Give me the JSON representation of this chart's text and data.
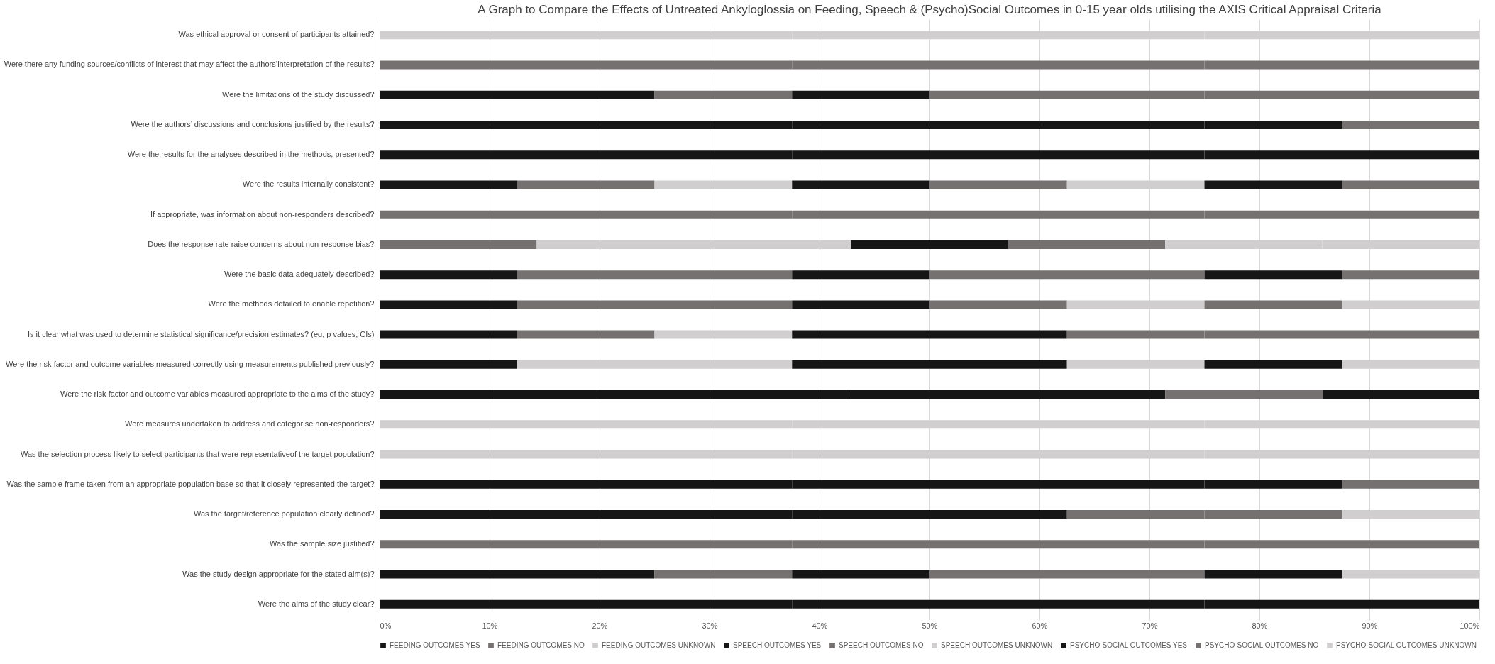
{
  "chart_data": {
    "type": "bar",
    "orientation": "horizontal",
    "stacked": true,
    "title": "A Graph to Compare the Effects of Untreated Ankyloglossia on Feeding, Speech & (Psycho)Social Outcomes in 0-15 year olds utilising the AXIS Critical Appraisal Criteria",
    "categories": [
      "Was ethical approval or consent of participants attained?",
      "Were there any funding sources/conflicts of interest that may affect the authors’interpretation of the results?",
      "Were the limitations of the study discussed?",
      "Were the authors’ discussions and conclusions justified by the results?",
      "Were the results for the analyses described in the methods, presented?",
      "Were the results internally consistent?",
      "If appropriate, was information about non-responders described?",
      "Does the response rate raise concerns about non-response bias?",
      "Were the basic data adequately described?",
      "Were the methods detailed to enable repetition?",
      "Is it clear what was used to determine statistical significance/precision estimates? (eg, p values, CIs)",
      "Were the risk factor and outcome variables measured correctly using measurements published previously?",
      "Were the risk factor and outcome variables measured appropriate to the aims of the study?",
      "Were measures undertaken to address and categorise non-responders?",
      "Was the selection process likely to select participants that were representativeof the target population?",
      "Was the sample frame taken from an appropriate population base so that it closely represented the target?",
      "Was the target/reference population clearly defined?",
      "Was the sample size justified?",
      "Was the study design appropriate for the stated aim(s)?",
      "Were the aims of the study clear?"
    ],
    "series": [
      {
        "name": "FEEDING OUTCOMES YES",
        "color": "#161616",
        "values": [
          null,
          null,
          25,
          37.5,
          37.5,
          12.5,
          null,
          null,
          12.5,
          12.5,
          12.5,
          12.5,
          42.86,
          null,
          null,
          37.5,
          37.5,
          null,
          25,
          37.5
        ]
      },
      {
        "name": "FEEDING OUTCOMES NO",
        "color": "#767171",
        "values": [
          null,
          37.5,
          12.5,
          null,
          null,
          12.5,
          37.5,
          14.29,
          25,
          25,
          12.5,
          null,
          null,
          null,
          null,
          null,
          null,
          37.5,
          12.5,
          null
        ]
      },
      {
        "name": "FEEDING OUTCOMES UNKNOWN",
        "color": "#d0cece",
        "values": [
          37.5,
          null,
          null,
          null,
          null,
          12.5,
          null,
          28.57,
          null,
          null,
          12.5,
          25,
          null,
          37.5,
          37.5,
          null,
          null,
          null,
          null,
          null
        ]
      },
      {
        "name": "SPEECH OUTCOMES YES",
        "color": "#161616",
        "values": [
          null,
          null,
          12.5,
          37.5,
          37.5,
          12.5,
          null,
          14.28,
          12.5,
          12.5,
          25,
          25,
          28.57,
          null,
          null,
          37.5,
          25,
          null,
          12.5,
          37.5
        ]
      },
      {
        "name": "SPEECH OUTCOMES NO",
        "color": "#767171",
        "values": [
          null,
          37.5,
          25,
          null,
          null,
          12.5,
          37.5,
          14.29,
          25,
          12.5,
          12.5,
          null,
          14.29,
          null,
          null,
          null,
          12.5,
          37.5,
          25,
          null
        ]
      },
      {
        "name": "SPEECH OUTCOMES UNKNOWN",
        "color": "#d0cece",
        "values": [
          37.5,
          null,
          null,
          null,
          null,
          12.5,
          null,
          14.28,
          null,
          12.5,
          null,
          12.5,
          null,
          37.5,
          37.5,
          null,
          null,
          null,
          null,
          null
        ]
      },
      {
        "name": "PSYCHO-SOCIAL OUTCOMES YES",
        "color": "#161616",
        "values": [
          null,
          null,
          null,
          12.5,
          25,
          12.5,
          null,
          null,
          12.5,
          null,
          null,
          12.5,
          14.28,
          null,
          null,
          12.5,
          null,
          null,
          12.5,
          25
        ]
      },
      {
        "name": "PSYCHO-SOCIAL OUTCOMES NO",
        "color": "#767171",
        "values": [
          null,
          25,
          25,
          12.5,
          null,
          12.5,
          25,
          null,
          12.5,
          12.5,
          25,
          null,
          null,
          null,
          null,
          12.5,
          12.5,
          25,
          null,
          null
        ]
      },
      {
        "name": "PSYCHO-SOCIAL OUTCOMES UNKNOWN",
        "color": "#d0cece",
        "values": [
          25,
          null,
          null,
          null,
          null,
          null,
          null,
          14.29,
          null,
          12.5,
          null,
          12.5,
          null,
          25,
          25,
          null,
          12.5,
          null,
          12.5,
          null
        ]
      }
    ],
    "xlim": [
      0,
      100
    ],
    "xticks": [
      {
        "value": 0,
        "label": "0%"
      },
      {
        "value": 10,
        "label": "10%"
      },
      {
        "value": 20,
        "label": "20%"
      },
      {
        "value": 30,
        "label": "30%"
      },
      {
        "value": 40,
        "label": "40%"
      },
      {
        "value": 50,
        "label": "50%"
      },
      {
        "value": 60,
        "label": "60%"
      },
      {
        "value": 70,
        "label": "70%"
      },
      {
        "value": 80,
        "label": "80%"
      },
      {
        "value": 90,
        "label": "90%"
      },
      {
        "value": 100,
        "label": "100%"
      }
    ],
    "grid": "x",
    "legend": "bottom"
  }
}
